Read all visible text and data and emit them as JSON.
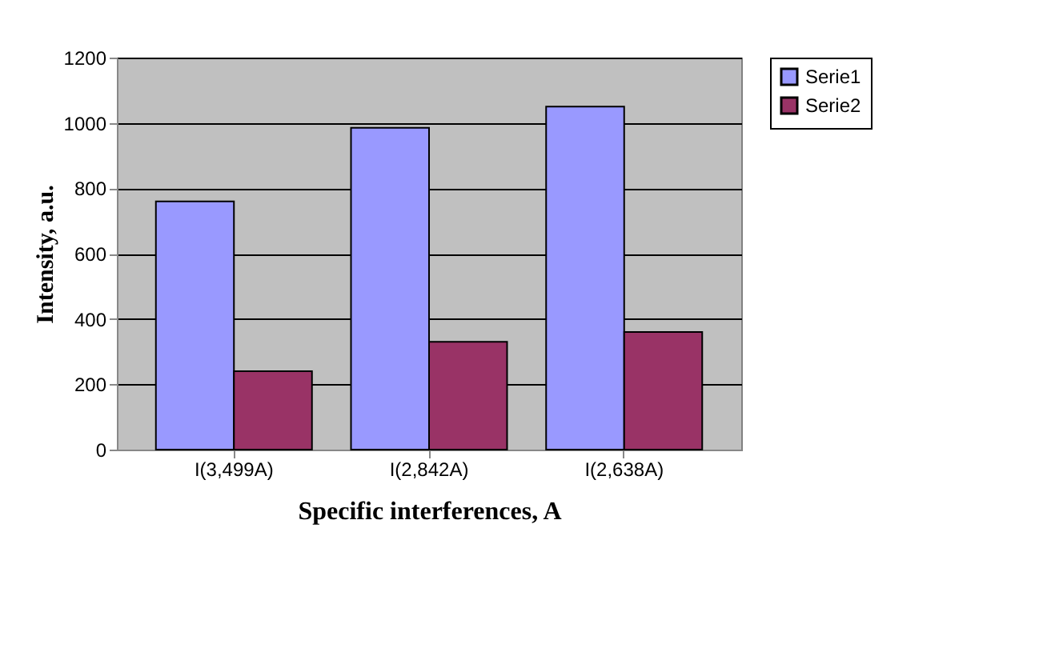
{
  "chart_data": {
    "type": "bar",
    "xlabel": "Specific interferences, A",
    "ylabel": "Intensity, a.u.",
    "categories": [
      "I(3,499A)",
      "I(2,842A)",
      "I(2,638A)"
    ],
    "series": [
      {
        "name": "Serie1",
        "color": "#9999ff",
        "values": [
          760,
          985,
          1050
        ]
      },
      {
        "name": "Serie2",
        "color": "#993366",
        "values": [
          240,
          330,
          360
        ]
      }
    ],
    "ylim": [
      0,
      1200
    ],
    "yticks": [
      0,
      200,
      400,
      600,
      800,
      1000,
      1200
    ],
    "grid": "y",
    "legend": "right"
  }
}
